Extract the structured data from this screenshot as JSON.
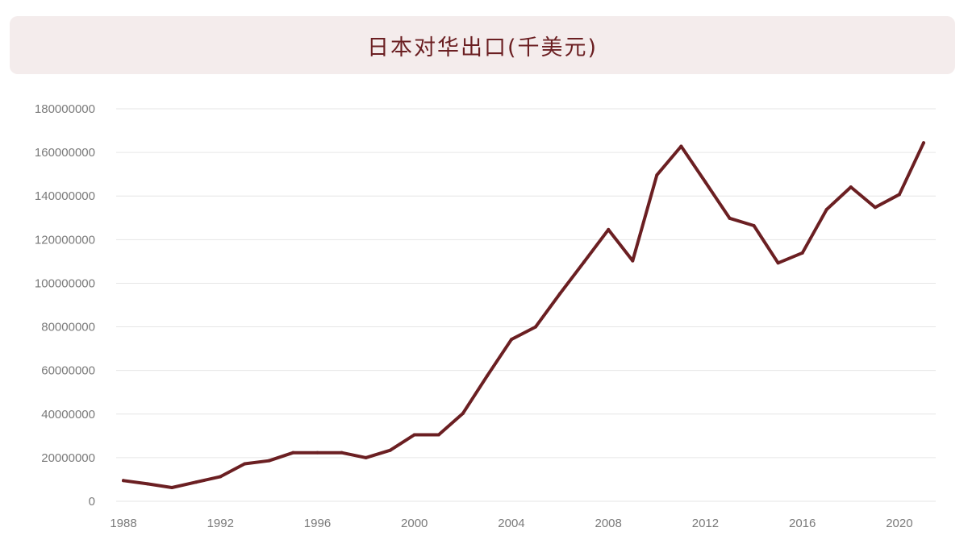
{
  "chart_data": {
    "type": "line",
    "title": "日本对华出口(千美元)",
    "xlabel": "",
    "ylabel": "",
    "xlim": [
      1987.7,
      2021.5
    ],
    "ylim": [
      0,
      180000000
    ],
    "y_ticks": [
      0,
      20000000,
      40000000,
      60000000,
      80000000,
      100000000,
      120000000,
      140000000,
      160000000,
      180000000
    ],
    "y_tick_labels": [
      "0",
      "20000000",
      "40000000",
      "60000000",
      "80000000",
      "100000000",
      "120000000",
      "140000000",
      "160000000",
      "180000000"
    ],
    "x_ticks": [
      1988,
      1992,
      1996,
      2000,
      2004,
      2008,
      2012,
      2016,
      2020
    ],
    "x_tick_labels": [
      "1988",
      "1992",
      "1996",
      "2000",
      "2004",
      "2008",
      "2012",
      "2016",
      "2020"
    ],
    "grid": "horizontal",
    "legend": "none",
    "line_color": "#6b1f22",
    "series": [
      {
        "name": "",
        "x": [
          1988,
          1989,
          1990,
          1991,
          1992,
          1993,
          1994,
          1995,
          1996,
          1997,
          1998,
          1999,
          2000,
          2001,
          2002,
          2003,
          2004,
          2005,
          2006,
          2007,
          2008,
          2009,
          2010,
          2011,
          2012,
          2013,
          2014,
          2015,
          2016,
          2017,
          2018,
          2019,
          2020,
          2021
        ],
        "values": [
          9500000,
          8000000,
          6300000,
          8800000,
          11300000,
          17200000,
          18600000,
          22300000,
          22300000,
          22300000,
          20000000,
          23400000,
          30500000,
          30500000,
          40300000,
          57500000,
          74200000,
          80000000,
          95200000,
          109800000,
          124600000,
          110300000,
          149600000,
          162800000,
          146400000,
          129800000,
          126400000,
          109300000,
          113900000,
          133800000,
          144100000,
          134800000,
          140700000,
          164400000
        ]
      }
    ]
  }
}
